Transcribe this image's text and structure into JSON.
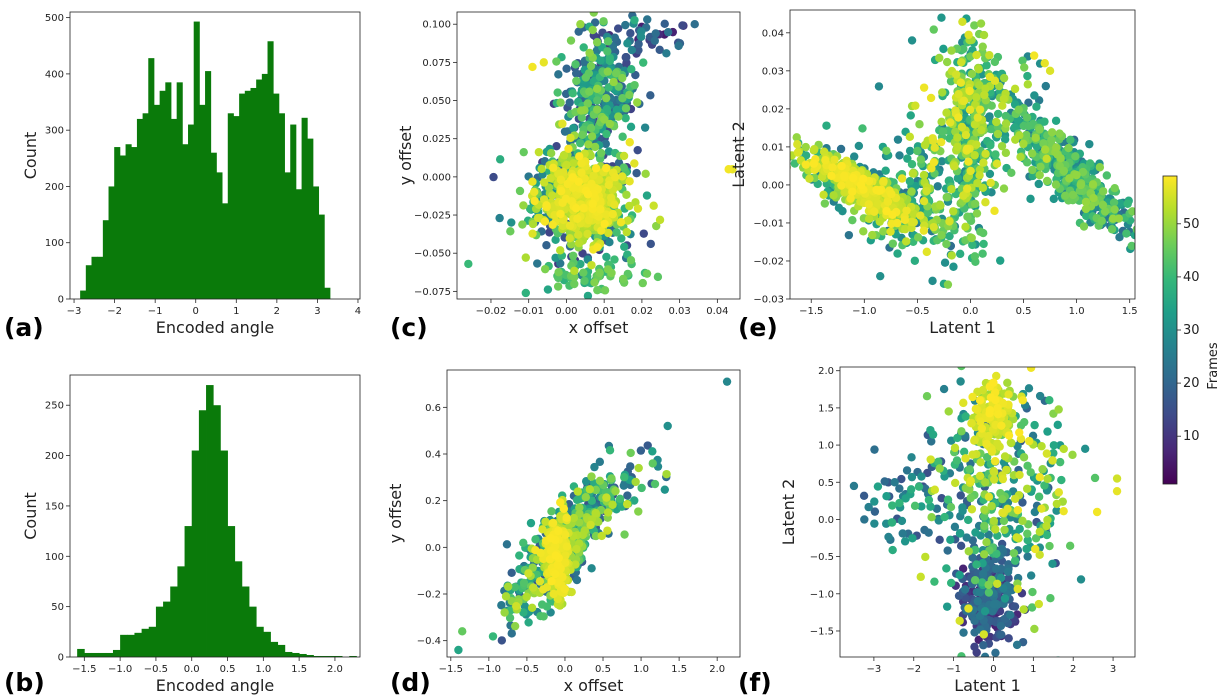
{
  "colors": {
    "histogram": "#0a7a0a",
    "colormap": "viridis"
  },
  "charts": [
    {
      "id": "a",
      "panel_label": "(a)",
      "type": "histogram",
      "xlabel": "Encoded angle",
      "ylabel": "Count",
      "xlim": [
        -3.1,
        4.05
      ],
      "ylim": [
        0,
        510
      ],
      "xticks": [
        -3,
        -2,
        -1,
        0,
        1,
        2,
        3,
        4
      ],
      "yticks": [
        0,
        100,
        200,
        300,
        400,
        500
      ],
      "bin_start": -2.85,
      "bin_width": 0.14,
      "counts": [
        15,
        60,
        75,
        75,
        140,
        200,
        270,
        255,
        275,
        270,
        320,
        330,
        428,
        345,
        370,
        385,
        320,
        385,
        275,
        310,
        493,
        345,
        405,
        260,
        225,
        170,
        330,
        325,
        365,
        370,
        375,
        390,
        400,
        458,
        365,
        330,
        225,
        310,
        195,
        322,
        285,
        200,
        150,
        20
      ]
    },
    {
      "id": "b",
      "panel_label": "(b)",
      "type": "histogram",
      "xlabel": "Encoded angle",
      "ylabel": "Count",
      "xlim": [
        -1.7,
        2.35
      ],
      "ylim": [
        0,
        280
      ],
      "xticks": [
        -1.5,
        -1.0,
        -0.5,
        0.0,
        0.5,
        1.0,
        1.5,
        2.0
      ],
      "yticks": [
        0,
        50,
        100,
        150,
        200,
        250
      ],
      "bin_start": -1.6,
      "bin_width": 0.1,
      "counts": [
        8,
        4,
        4,
        4,
        4,
        7,
        22,
        22,
        24,
        28,
        30,
        50,
        55,
        70,
        90,
        130,
        205,
        245,
        270,
        250,
        205,
        130,
        95,
        70,
        50,
        30,
        25,
        15,
        12,
        5,
        4,
        3,
        2,
        1,
        1,
        1,
        1,
        0,
        1
      ]
    },
    {
      "id": "c",
      "panel_label": "(c)",
      "type": "scatter",
      "xlabel": "x offset",
      "ylabel": "y offset",
      "xlim": [
        -0.029,
        0.046
      ],
      "ylim": [
        -0.08,
        0.108
      ],
      "xticks": [
        -0.02,
        -0.01,
        0.0,
        0.01,
        0.02,
        0.03,
        0.04
      ],
      "yticks": [
        -0.075,
        -0.05,
        -0.025,
        0.0,
        0.025,
        0.05,
        0.075,
        0.1
      ],
      "clusters": [
        {
          "n": 420,
          "cx": 0.004,
          "cy": -0.015,
          "sx": 0.0075,
          "sy": 0.018,
          "cmin": 10,
          "cmax": 58
        },
        {
          "n": 480,
          "cx": 0.004,
          "cy": -0.012,
          "sx": 0.0045,
          "sy": 0.013,
          "cmin": 48,
          "cmax": 59
        },
        {
          "n": 300,
          "cx": 0.009,
          "cy": 0.055,
          "sx": 0.005,
          "sy": 0.02,
          "cmin": 12,
          "cmax": 50
        },
        {
          "n": 60,
          "cx": 0.007,
          "cy": -0.065,
          "sx": 0.006,
          "sy": 0.006,
          "cmin": 35,
          "cmax": 48
        },
        {
          "n": 40,
          "cx": 0.02,
          "cy": 0.09,
          "sx": 0.007,
          "sy": 0.006,
          "cmin": 5,
          "cmax": 30
        }
      ],
      "points": [
        {
          "x": 0.043,
          "y": 0.005,
          "c": 58
        },
        {
          "x": 0.044,
          "y": 0.005,
          "c": 57
        },
        {
          "x": -0.009,
          "y": 0.072,
          "c": 58
        },
        {
          "x": -0.006,
          "y": 0.075,
          "c": 57
        },
        {
          "x": 0.034,
          "y": 0.1,
          "c": 22
        },
        {
          "x": 0.031,
          "y": 0.099,
          "c": 10
        },
        {
          "x": -0.026,
          "y": -0.057,
          "c": 40
        },
        {
          "x": 0.021,
          "y": 0.002,
          "c": 50
        }
      ]
    },
    {
      "id": "d",
      "panel_label": "(d)",
      "type": "scatter",
      "xlabel": "x offset",
      "ylabel": "y offset",
      "xlim": [
        -1.55,
        2.3
      ],
      "ylim": [
        -0.47,
        0.76
      ],
      "xticks": [
        -1.5,
        -1.0,
        -0.5,
        0.0,
        0.5,
        1.0,
        1.5,
        2.0
      ],
      "yticks": [
        -0.4,
        -0.2,
        0.0,
        0.2,
        0.4,
        0.6
      ],
      "clusters": [
        {
          "n": 500,
          "cx": -0.05,
          "cy": 0.0,
          "sx": 0.35,
          "sy": 0.14,
          "cmin": 15,
          "cmax": 55,
          "rho": 0.8
        },
        {
          "n": 260,
          "cx": -0.1,
          "cy": -0.05,
          "sx": 0.09,
          "sy": 0.08,
          "cmin": 50,
          "cmax": 59
        },
        {
          "n": 80,
          "cx": 0.6,
          "cy": 0.22,
          "sx": 0.35,
          "sy": 0.1,
          "cmin": 15,
          "cmax": 55,
          "rho": 0.6
        }
      ],
      "points": [
        {
          "x": 2.13,
          "y": 0.71,
          "c": 28
        },
        {
          "x": -1.4,
          "y": -0.44,
          "c": 35
        },
        {
          "x": -1.35,
          "y": -0.36,
          "c": 45
        },
        {
          "x": 1.35,
          "y": 0.52,
          "c": 30
        }
      ]
    },
    {
      "id": "e",
      "panel_label": "(e)",
      "type": "scatter",
      "xlabel": "Latent 1",
      "ylabel": "Latent 2",
      "xlim": [
        -1.7,
        1.55
      ],
      "ylim": [
        -0.03,
        0.046
      ],
      "xticks": [
        -1.5,
        -1.0,
        -0.5,
        0.0,
        0.5,
        1.0,
        1.5
      ],
      "yticks": [
        -0.03,
        -0.02,
        -0.01,
        0.0,
        0.01,
        0.02,
        0.03,
        0.04
      ],
      "clusters": [
        {
          "n": 380,
          "cx": -1.0,
          "cy": -0.001,
          "sx": 0.22,
          "sy": 0.004,
          "cmin": 48,
          "cmax": 59,
          "rho": -0.85
        },
        {
          "n": 300,
          "cx": -1.0,
          "cy": -0.002,
          "sx": 0.4,
          "sy": 0.007,
          "cmin": 22,
          "cmax": 55,
          "rho": -0.8
        },
        {
          "n": 420,
          "cx": 0.98,
          "cy": 0.002,
          "sx": 0.25,
          "sy": 0.007,
          "cmin": 20,
          "cmax": 50,
          "rho": -0.85
        },
        {
          "n": 340,
          "cx": 0.0,
          "cy": 0.015,
          "sx": 0.12,
          "sy": 0.014,
          "cmin": 28,
          "cmax": 58
        },
        {
          "n": 180,
          "cx": -0.4,
          "cy": 0.002,
          "sx": 0.3,
          "sy": 0.01,
          "cmin": 25,
          "cmax": 58
        },
        {
          "n": 120,
          "cx": 0.35,
          "cy": 0.02,
          "sx": 0.25,
          "sy": 0.008,
          "cmin": 25,
          "cmax": 55,
          "rho": -0.5
        }
      ],
      "points": [
        {
          "x": 0.6,
          "y": 0.034,
          "c": 58
        },
        {
          "x": 0.7,
          "y": 0.032,
          "c": 57
        },
        {
          "x": 0.75,
          "y": 0.03,
          "c": 56
        },
        {
          "x": -0.55,
          "y": 0.038,
          "c": 30
        },
        {
          "x": -0.85,
          "y": -0.024,
          "c": 30
        },
        {
          "x": -0.25,
          "y": -0.026,
          "c": 35
        }
      ]
    },
    {
      "id": "f",
      "panel_label": "(f)",
      "type": "scatter",
      "xlabel": "Latent 1",
      "ylabel": "Latent 2",
      "xlim": [
        -3.85,
        3.55
      ],
      "ylim": [
        -1.85,
        2.05
      ],
      "xticks": [
        -3,
        -2,
        -1,
        0,
        1,
        2,
        3
      ],
      "yticks": [
        -1.5,
        -1.0,
        -0.5,
        0.0,
        0.5,
        1.0,
        1.5,
        2.0
      ],
      "clusters": [
        {
          "n": 260,
          "cx": -0.1,
          "cy": -1.05,
          "sx": 0.35,
          "sy": 0.3,
          "cmin": 5,
          "cmax": 25
        },
        {
          "n": 150,
          "cx": 0.0,
          "cy": 1.35,
          "sx": 0.25,
          "sy": 0.25,
          "cmin": 50,
          "cmax": 59
        },
        {
          "n": 380,
          "cx": 0.1,
          "cy": 0.25,
          "sx": 0.9,
          "sy": 0.75,
          "cmin": 15,
          "cmax": 58
        },
        {
          "n": 60,
          "cx": -2.0,
          "cy": 0.2,
          "sx": 0.7,
          "sy": 0.3,
          "cmin": 15,
          "cmax": 40
        }
      ],
      "points": [
        {
          "x": 3.1,
          "y": 0.55,
          "c": 55
        },
        {
          "x": 3.1,
          "y": 0.38,
          "c": 57
        },
        {
          "x": -3.5,
          "y": 0.45,
          "c": 25
        },
        {
          "x": 2.6,
          "y": 0.1,
          "c": 58
        },
        {
          "x": 2.3,
          "y": 0.95,
          "c": 30
        }
      ]
    }
  ],
  "colorbar": {
    "label": "Frames",
    "ticks": [
      10,
      20,
      30,
      40,
      50
    ],
    "vmin": 1,
    "vmax": 59
  }
}
